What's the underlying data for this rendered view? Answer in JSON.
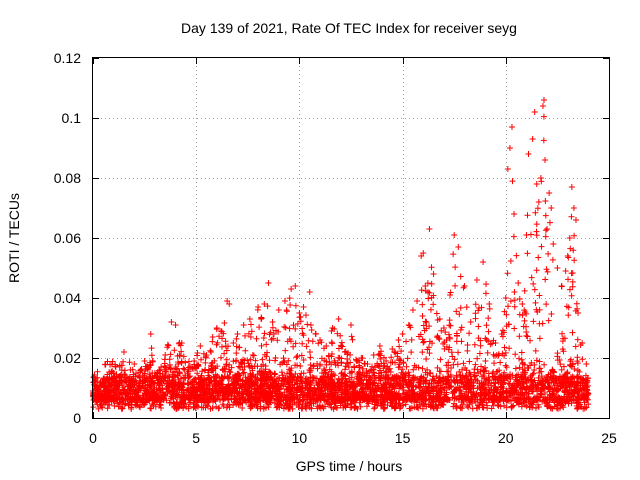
{
  "chart_data": {
    "type": "scatter",
    "title": "Day 139 of 2021, Rate Of TEC Index for receiver seyg",
    "xlabel": "GPS time / hours",
    "ylabel": "ROTI / TECUs",
    "xlim": [
      0,
      25
    ],
    "ylim": [
      0,
      0.12
    ],
    "x_ticks": [
      0,
      5,
      10,
      15,
      20,
      25
    ],
    "x_tick_labels": [
      "0",
      "5",
      "10",
      "15",
      "20",
      "25"
    ],
    "y_ticks": [
      0,
      0.02,
      0.04,
      0.06,
      0.08,
      0.1,
      0.12
    ],
    "y_tick_labels": [
      "0",
      "0.02",
      "0.04",
      "0.06",
      "0.08",
      "0.1",
      "0.12"
    ],
    "grid": true,
    "marker": "plus",
    "color": "#ff0000",
    "x_range_of_data": [
      0,
      24
    ],
    "sampled_points": [
      [
        0.0,
        0.009
      ],
      [
        0.2,
        0.011
      ],
      [
        0.5,
        0.013
      ],
      [
        0.8,
        0.012
      ],
      [
        1.0,
        0.015
      ],
      [
        1.3,
        0.014
      ],
      [
        1.5,
        0.022
      ],
      [
        1.7,
        0.013
      ],
      [
        2.0,
        0.018
      ],
      [
        2.3,
        0.016
      ],
      [
        2.5,
        0.019
      ],
      [
        2.8,
        0.028
      ],
      [
        3.0,
        0.015
      ],
      [
        3.3,
        0.017
      ],
      [
        3.5,
        0.021
      ],
      [
        3.8,
        0.032
      ],
      [
        4.0,
        0.031
      ],
      [
        4.3,
        0.025
      ],
      [
        4.6,
        0.016
      ],
      [
        4.9,
        0.019
      ],
      [
        5.2,
        0.024
      ],
      [
        5.5,
        0.021
      ],
      [
        5.8,
        0.027
      ],
      [
        6.0,
        0.03
      ],
      [
        6.2,
        0.029
      ],
      [
        6.5,
        0.039
      ],
      [
        6.6,
        0.038
      ],
      [
        6.8,
        0.025
      ],
      [
        7.0,
        0.028
      ],
      [
        7.3,
        0.031
      ],
      [
        7.6,
        0.033
      ],
      [
        8.0,
        0.037
      ],
      [
        8.3,
        0.038
      ],
      [
        8.5,
        0.045
      ],
      [
        8.7,
        0.032
      ],
      [
        9.0,
        0.036
      ],
      [
        9.3,
        0.039
      ],
      [
        9.6,
        0.043
      ],
      [
        9.8,
        0.044
      ],
      [
        10.0,
        0.035
      ],
      [
        10.2,
        0.037
      ],
      [
        10.5,
        0.042
      ],
      [
        10.8,
        0.028
      ],
      [
        11.0,
        0.026
      ],
      [
        11.3,
        0.024
      ],
      [
        11.6,
        0.03
      ],
      [
        11.9,
        0.033
      ],
      [
        12.2,
        0.022
      ],
      [
        12.5,
        0.031
      ],
      [
        12.8,
        0.019
      ],
      [
        13.0,
        0.02
      ],
      [
        13.3,
        0.018
      ],
      [
        13.6,
        0.021
      ],
      [
        13.9,
        0.024
      ],
      [
        14.2,
        0.019
      ],
      [
        14.5,
        0.023
      ],
      [
        14.8,
        0.026
      ],
      [
        15.0,
        0.028
      ],
      [
        15.3,
        0.031
      ],
      [
        15.5,
        0.036
      ],
      [
        15.7,
        0.039
      ],
      [
        15.9,
        0.054
      ],
      [
        16.0,
        0.055
      ],
      [
        16.1,
        0.044
      ],
      [
        16.3,
        0.063
      ],
      [
        16.5,
        0.048
      ],
      [
        16.8,
        0.033
      ],
      [
        17.0,
        0.03
      ],
      [
        17.3,
        0.041
      ],
      [
        17.5,
        0.061
      ],
      [
        17.7,
        0.057
      ],
      [
        18.0,
        0.044
      ],
      [
        18.3,
        0.032
      ],
      [
        18.6,
        0.046
      ],
      [
        18.9,
        0.052
      ],
      [
        19.2,
        0.038
      ],
      [
        19.5,
        0.025
      ],
      [
        19.8,
        0.028
      ],
      [
        20.0,
        0.04
      ],
      [
        20.1,
        0.083
      ],
      [
        20.2,
        0.09
      ],
      [
        20.3,
        0.097
      ],
      [
        20.4,
        0.068
      ],
      [
        20.6,
        0.045
      ],
      [
        20.8,
        0.038
      ],
      [
        21.0,
        0.061
      ],
      [
        21.1,
        0.088
      ],
      [
        21.3,
        0.093
      ],
      [
        21.4,
        0.102
      ],
      [
        21.5,
        0.078
      ],
      [
        21.6,
        0.072
      ],
      [
        21.7,
        0.08
      ],
      [
        21.8,
        0.104
      ],
      [
        21.85,
        0.106
      ],
      [
        21.9,
        0.086
      ],
      [
        22.0,
        0.063
      ],
      [
        22.1,
        0.075
      ],
      [
        22.2,
        0.07
      ],
      [
        22.3,
        0.058
      ],
      [
        22.5,
        0.05
      ],
      [
        22.7,
        0.044
      ],
      [
        22.9,
        0.049
      ],
      [
        23.0,
        0.054
      ],
      [
        23.1,
        0.06
      ],
      [
        23.2,
        0.077
      ],
      [
        23.3,
        0.07
      ],
      [
        23.4,
        0.066
      ],
      [
        23.5,
        0.035
      ],
      [
        23.7,
        0.025
      ],
      [
        23.9,
        0.018
      ],
      [
        24.0,
        0.008
      ]
    ]
  }
}
